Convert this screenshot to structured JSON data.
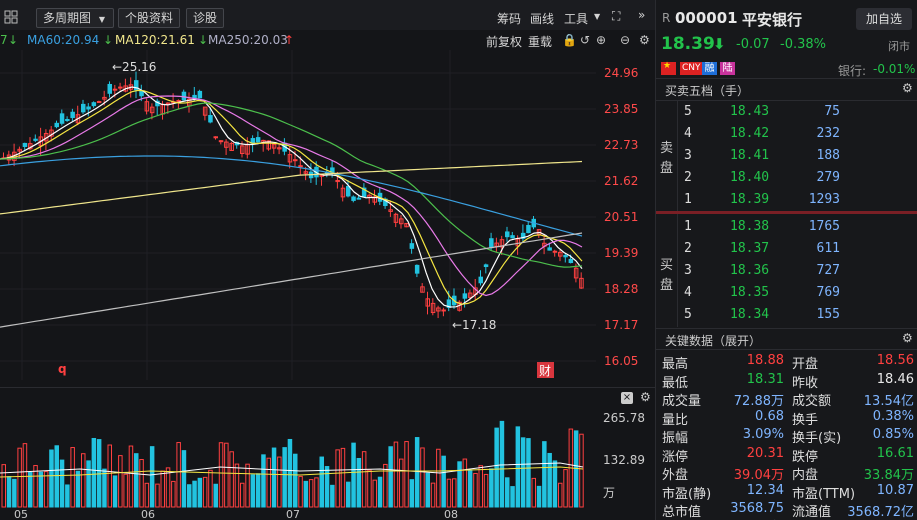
{
  "toolbar": {
    "multi_period": "多周期图",
    "stock_profile": "个股资料",
    "diagnose": "诊股",
    "chip": "筹码",
    "draw_line": "画线",
    "tools": "工具"
  },
  "sub_toolbar": {
    "forward_adjust": "前复权",
    "overlay": "重载"
  },
  "ma_legend": {
    "ma_prev": "7",
    "ma60": "MA60:20.94",
    "ma120": "MA120:21.61",
    "ma250": "MA250:20.03"
  },
  "price_axis": [
    "24.96",
    "23.85",
    "22.73",
    "21.62",
    "20.51",
    "19.39",
    "18.28",
    "17.17",
    "16.05"
  ],
  "annotations": {
    "high": "←25.16",
    "low": "←17.18",
    "q_marker": "q",
    "cai_marker": "财"
  },
  "volume_axis": [
    "265.78",
    "132.89",
    "万"
  ],
  "x_axis": [
    "05",
    "06",
    "07",
    "08"
  ],
  "stock": {
    "r_prefix": "R",
    "code": "000001",
    "name": "平安银行",
    "add_watch": "加自选",
    "price": "18.39",
    "change": "-0.07",
    "change_pct": "-0.38%",
    "status": "闭市",
    "tags": [
      "CNY",
      "融",
      "陆"
    ],
    "sector": "银行:",
    "sector_change": "-0.01%"
  },
  "order_book": {
    "title": "买卖五档（手）",
    "sell_label": [
      "卖",
      "盘"
    ],
    "buy_label": [
      "买",
      "盘"
    ],
    "sells": [
      {
        "level": "5",
        "price": "18.43",
        "volume": "75"
      },
      {
        "level": "4",
        "price": "18.42",
        "volume": "232"
      },
      {
        "level": "3",
        "price": "18.41",
        "volume": "188"
      },
      {
        "level": "2",
        "price": "18.40",
        "volume": "279"
      },
      {
        "level": "1",
        "price": "18.39",
        "volume": "1293"
      }
    ],
    "buys": [
      {
        "level": "1",
        "price": "18.38",
        "volume": "1765"
      },
      {
        "level": "2",
        "price": "18.37",
        "volume": "611"
      },
      {
        "level": "3",
        "price": "18.36",
        "volume": "727"
      },
      {
        "level": "4",
        "price": "18.35",
        "volume": "769"
      },
      {
        "level": "5",
        "price": "18.34",
        "volume": "155"
      }
    ]
  },
  "key_data": {
    "title": "关键数据（展开）",
    "rows": [
      {
        "l1": "最高",
        "v1": "18.88",
        "c1": "red",
        "l2": "开盘",
        "v2": "18.56",
        "c2": "red"
      },
      {
        "l1": "最低",
        "v1": "18.31",
        "c1": "green",
        "l2": "昨收",
        "v2": "18.46",
        "c2": "white"
      },
      {
        "l1": "成交量",
        "v1": "72.88万",
        "c1": "blue",
        "l2": "成交额",
        "v2": "13.54亿",
        "c2": "blue"
      },
      {
        "l1": "量比",
        "v1": "0.68",
        "c1": "blue",
        "l2": "换手",
        "v2": "0.38%",
        "c2": "blue"
      },
      {
        "l1": "振幅",
        "v1": "3.09%",
        "c1": "blue",
        "l2": "换手(实)",
        "v2": "0.85%",
        "c2": "blue"
      },
      {
        "l1": "涨停",
        "v1": "20.31",
        "c1": "red",
        "l2": "跌停",
        "v2": "16.61",
        "c2": "green"
      },
      {
        "l1": "外盘",
        "v1": "39.04万",
        "c1": "red",
        "l2": "内盘",
        "v2": "33.84万",
        "c2": "green"
      },
      {
        "l1": "市盈(静)",
        "v1": "12.34",
        "c1": "blue",
        "l2": "市盈(TTM)",
        "v2": "10.87",
        "c2": "blue"
      },
      {
        "l1": "总市值",
        "v1": "3568.75亿",
        "c1": "blue",
        "l2": "流通值",
        "v2": "3568.72亿",
        "c2": "blue"
      }
    ]
  },
  "colors": {
    "up": "#ff4040",
    "down": "#22c3e0",
    "ma5": "#ffffff",
    "ma10": "#f5e642",
    "ma20": "#e87ae8",
    "ma60": "#4cbf4c",
    "ma120": "#f0e68c",
    "ma250": "#c0c0c0",
    "ma_blue": "#3aa0e0"
  }
}
